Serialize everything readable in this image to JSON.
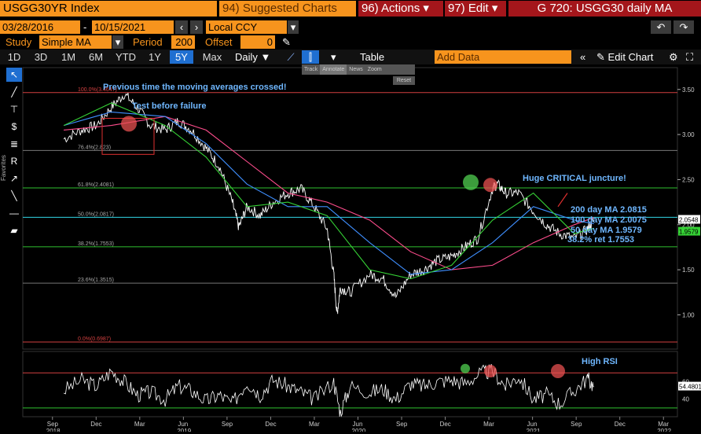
{
  "header": {
    "ticker": "USGG30YR Index",
    "suggested": "94) Suggested Charts",
    "actions": "96) Actions",
    "edit": "97) Edit",
    "window_title": "G 720: USGG30 daily MA"
  },
  "date_range": {
    "start": "03/28/2016",
    "end": "10/15/2021",
    "currency": "Local CCY"
  },
  "study": {
    "label": "Study",
    "value": "Simple MA",
    "period_label": "Period",
    "period": "200",
    "offset_label": "Offset",
    "offset": "0"
  },
  "toolbar": {
    "tabs": [
      "1D",
      "3D",
      "1M",
      "6M",
      "YTD",
      "1Y",
      "5Y",
      "Max"
    ],
    "active_tab": "5Y",
    "interval": "Daily",
    "table": "Table",
    "add_data": "Add Data",
    "edit_chart": "Edit Chart"
  },
  "mini_toolbar": {
    "track": "Track",
    "annotate": "Annotate",
    "news": "News",
    "zoom": "Zoom",
    "reset": "Reset"
  },
  "sidebar": {
    "favorites": "Favorites"
  },
  "colors": {
    "orange": "#f7941d",
    "red_title": "#a4161b",
    "price": "#ffffff",
    "ma200": "#ff4d8d",
    "ma100": "#3f8fff",
    "ma50": "#35d135",
    "fib_red": "#d24040",
    "fib_green": "#2fbf2f",
    "fib_cyan": "#33d6e6",
    "annotation": "#6fb7ff"
  },
  "chart_data": [
    {
      "type": "line",
      "title": "",
      "ylim": [
        0.62,
        3.62
      ],
      "y_ticks": [
        "3.50",
        "3.00",
        "2.50",
        "2.00",
        "1.50",
        "1.00"
      ],
      "y_tick_values": [
        3.5,
        3.0,
        2.5,
        2.0,
        1.5,
        1.0
      ],
      "last_price": "2.0548",
      "last_ma50": "1.9579",
      "fib_levels": [
        {
          "label": "100.0%(3.4647)",
          "value": 3.4647,
          "color": "red"
        },
        {
          "label": "76.4%(2.823)",
          "value": 2.823,
          "color": "gray"
        },
        {
          "label": "61.8%(2.4081)",
          "value": 2.4081,
          "color": "green"
        },
        {
          "label": "50.0%(2.0817)",
          "value": 2.0817,
          "color": "cyan"
        },
        {
          "label": "38.2%(1.7553)",
          "value": 1.7553,
          "color": "green"
        },
        {
          "label": "23.6%(1.3515)",
          "value": 1.3515,
          "color": "gray"
        },
        {
          "label": "0.0%(0.6987)",
          "value": 0.6987,
          "color": "red"
        }
      ],
      "annotations": {
        "crossed": "Previous time the moving averages crossed!",
        "test": "Test before failure",
        "juncture": "Huge CRITICAL juncture!",
        "ma200": "200 day MA 2.0815",
        "ma100": "100 day MA 2.0075",
        "ma50": "50 day MA 1.9579",
        "ret": "38.2% ret 1.7553"
      },
      "x_month_labels": [
        "Sep",
        "Dec",
        "Mar",
        "Jun",
        "Sep",
        "Dec",
        "Mar",
        "Jun",
        "Sep",
        "Dec",
        "Mar",
        "Jun",
        "Sep",
        "Dec",
        "Mar"
      ],
      "x_year_labels": [
        "2018",
        "2019",
        "2020",
        "2021",
        "2022"
      ],
      "series": [
        {
          "name": "",
          "key": "price",
          "x": [
            2018.55,
            2018.66,
            2018.75,
            2018.84,
            2018.92,
            2019.0,
            2019.08,
            2019.17,
            2019.25,
            2019.33,
            2019.42,
            2019.5,
            2019.58,
            2019.62,
            2019.67,
            2019.75,
            2019.83,
            2019.92,
            2020.0,
            2020.08,
            2020.16,
            2020.2,
            2020.22,
            2020.24,
            2020.3,
            2020.42,
            2020.5,
            2020.58,
            2020.67,
            2020.75,
            2020.83,
            2020.92,
            2021.0,
            2021.08,
            2021.17,
            2021.2,
            2021.25,
            2021.33,
            2021.42,
            2021.5,
            2021.58,
            2021.67,
            2021.75,
            2021.79
          ],
          "values": [
            2.95,
            3.05,
            3.1,
            3.3,
            3.45,
            3.3,
            3.1,
            3.05,
            3.15,
            3.05,
            2.85,
            2.65,
            2.25,
            1.97,
            2.2,
            2.1,
            2.25,
            2.35,
            2.4,
            2.2,
            1.95,
            1.45,
            1.0,
            1.3,
            1.25,
            1.45,
            1.4,
            1.2,
            1.45,
            1.5,
            1.6,
            1.65,
            1.75,
            1.85,
            2.4,
            2.45,
            2.35,
            2.35,
            2.15,
            2.0,
            1.9,
            1.85,
            1.95,
            2.05
          ]
        },
        {
          "name": "",
          "key": "ma200",
          "x": [
            2018.55,
            2018.84,
            2019.17,
            2019.42,
            2019.67,
            2019.92,
            2020.16,
            2020.42,
            2020.67,
            2020.92,
            2021.17,
            2021.42,
            2021.67,
            2021.79
          ],
          "values": [
            3.05,
            3.1,
            3.2,
            3.05,
            2.7,
            2.35,
            2.25,
            2.05,
            1.7,
            1.5,
            1.55,
            1.8,
            2.0,
            2.08
          ]
        },
        {
          "name": "",
          "key": "ma100",
          "x": [
            2018.55,
            2018.84,
            2019.17,
            2019.42,
            2019.67,
            2019.92,
            2020.16,
            2020.42,
            2020.67,
            2020.92,
            2021.17,
            2021.42,
            2021.67,
            2021.79
          ],
          "values": [
            3.1,
            3.25,
            3.2,
            2.9,
            2.45,
            2.2,
            2.2,
            1.8,
            1.45,
            1.5,
            1.8,
            2.2,
            2.05,
            2.01
          ]
        },
        {
          "name": "",
          "key": "ma50",
          "x": [
            2018.55,
            2018.84,
            2019.17,
            2019.42,
            2019.67,
            2019.92,
            2020.16,
            2020.42,
            2020.67,
            2020.92,
            2021.17,
            2021.42,
            2021.67,
            2021.79
          ],
          "values": [
            3.1,
            3.35,
            3.1,
            2.75,
            2.2,
            2.25,
            2.1,
            1.5,
            1.4,
            1.55,
            2.05,
            2.35,
            1.9,
            1.96
          ]
        }
      ]
    },
    {
      "type": "line",
      "title": "High RSI",
      "ylim": [
        20,
        90
      ],
      "y_ticks": [
        "60",
        "40"
      ],
      "y_tick_values": [
        60,
        40
      ],
      "last_value": "54.4801",
      "levels": [
        70,
        30
      ],
      "series": [
        {
          "name": "",
          "key": "rsi",
          "x": [
            2018.55,
            2018.66,
            2018.75,
            2018.84,
            2018.92,
            2019.0,
            2019.08,
            2019.17,
            2019.25,
            2019.33,
            2019.42,
            2019.5,
            2019.58,
            2019.67,
            2019.75,
            2019.83,
            2019.92,
            2020.0,
            2020.08,
            2020.2,
            2020.24,
            2020.3,
            2020.42,
            2020.5,
            2020.58,
            2020.67,
            2020.75,
            2020.83,
            2020.92,
            2021.0,
            2021.1,
            2021.17,
            2021.25,
            2021.33,
            2021.42,
            2021.5,
            2021.58,
            2021.67,
            2021.75,
            2021.79
          ],
          "values": [
            50,
            62,
            55,
            72,
            60,
            45,
            48,
            40,
            55,
            50,
            38,
            45,
            35,
            60,
            45,
            62,
            55,
            48,
            40,
            60,
            25,
            55,
            48,
            52,
            40,
            58,
            55,
            60,
            62,
            58,
            70,
            72,
            55,
            66,
            40,
            45,
            35,
            50,
            64,
            54.48
          ]
        }
      ]
    }
  ]
}
